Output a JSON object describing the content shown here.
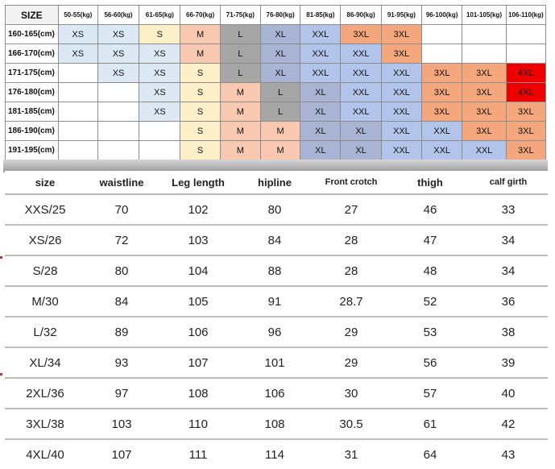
{
  "top_table": {
    "corner": "SIZE",
    "weights": [
      "50-55(kg)",
      "56-60(kg)",
      "61-65(kg)",
      "66-70(kg)",
      "71-75(kg)",
      "76-80(kg)",
      "81-85(kg)",
      "86-90(kg)",
      "91-95(kg)",
      "96-100(kg)",
      "101-105(kg)",
      "106-110(kg)"
    ],
    "rows": [
      {
        "height": "160-165(cm)",
        "cells": [
          "XS",
          "XS",
          "S",
          "M",
          "L",
          "XL",
          "XXL",
          "3XL",
          "3XL",
          "",
          "",
          ""
        ]
      },
      {
        "height": "166-170(cm)",
        "cells": [
          "XS",
          "XS",
          "XS",
          "M",
          "L",
          "XL",
          "XXL",
          "XXL",
          "3XL",
          "",
          "",
          ""
        ]
      },
      {
        "height": "171-175(cm)",
        "cells": [
          "",
          "XS",
          "XS",
          "S",
          "L",
          "XL",
          "XXL",
          "XXL",
          "XXL",
          "3XL",
          "3XL",
          "4XL"
        ]
      },
      {
        "height": "176-180(cm)",
        "cells": [
          "",
          "",
          "XS",
          "S",
          "M",
          "L",
          "XL",
          "XXL",
          "XXL",
          "3XL",
          "3XL",
          "4XL"
        ]
      },
      {
        "height": "181-185(cm)",
        "cells": [
          "",
          "",
          "XS",
          "S",
          "M",
          "L",
          "XL",
          "XXL",
          "XXL",
          "3XL",
          "3XL",
          "3XL"
        ]
      },
      {
        "height": "186-190(cm)",
        "cells": [
          "",
          "",
          "",
          "S",
          "M",
          "M",
          "XL",
          "XL",
          "XXL",
          "XXL",
          "3XL",
          "3XL"
        ]
      },
      {
        "height": "191-195(cm)",
        "cells": [
          "",
          "",
          "",
          "S",
          "M",
          "M",
          "XL",
          "XL",
          "XXL",
          "XXL",
          "XXL",
          "3XL"
        ]
      }
    ],
    "size_colors": {
      "XS": "#dce9f5",
      "S": "#fdf0c8",
      "M": "#f8c8b0",
      "L": "#a6a6a6",
      "XL": "#a9b4d4",
      "XXL": "#b3c4ea",
      "3XL": "#f4a77c",
      "4XL": "#ee0000"
    }
  },
  "bottom_table": {
    "headers": [
      "size",
      "waistline",
      "Leg length",
      "hipline",
      "Front crotch",
      "thigh",
      "calf girth"
    ],
    "rows": [
      [
        "XXS/25",
        "70",
        "102",
        "80",
        "27",
        "46",
        "33"
      ],
      [
        "XS/26",
        "72",
        "103",
        "84",
        "28",
        "47",
        "34"
      ],
      [
        "S/28",
        "80",
        "104",
        "88",
        "28",
        "48",
        "34"
      ],
      [
        "M/30",
        "84",
        "105",
        "91",
        "28.7",
        "52",
        "36"
      ],
      [
        "L/32",
        "89",
        "106",
        "96",
        "29",
        "53",
        "38"
      ],
      [
        "XL/34",
        "93",
        "107",
        "101",
        "29",
        "56",
        "39"
      ],
      [
        "2XL/36",
        "97",
        "108",
        "106",
        "30",
        "57",
        "40"
      ],
      [
        "3XL/38",
        "103",
        "110",
        "108",
        "30.5",
        "61",
        "42"
      ],
      [
        "4XL/40",
        "107",
        "111",
        "114",
        "31",
        "64",
        "43"
      ]
    ]
  }
}
